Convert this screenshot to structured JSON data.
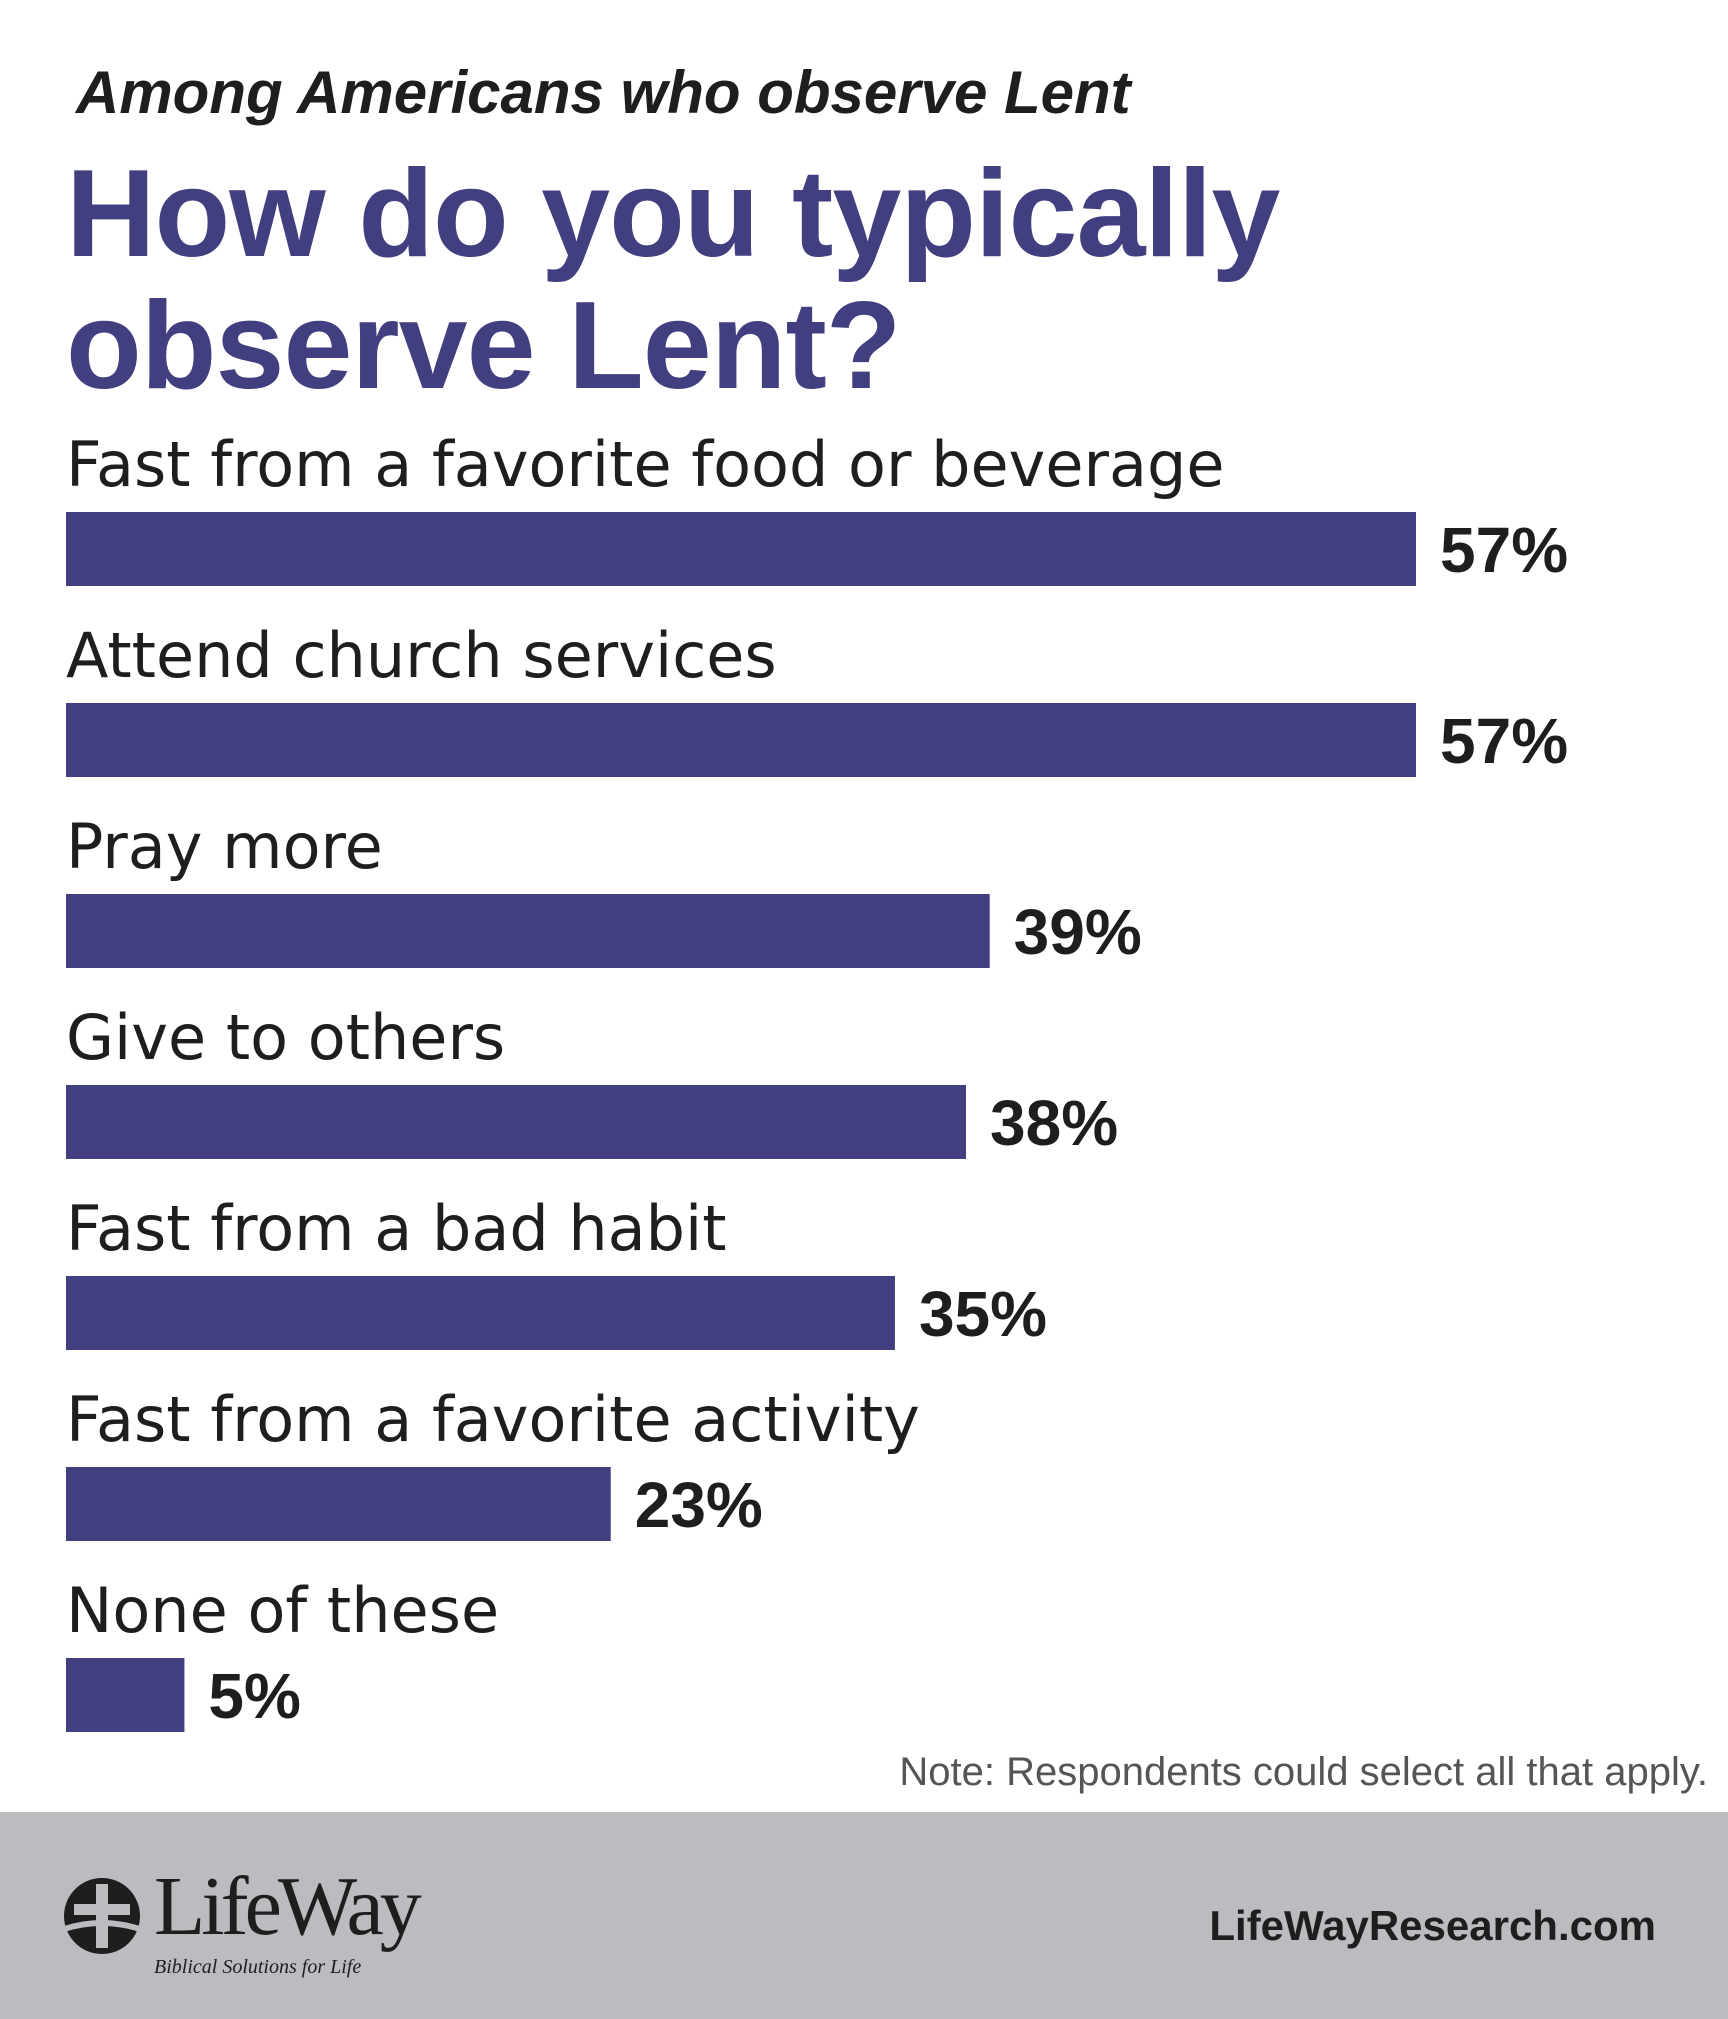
{
  "header": {
    "subtitle": "Among Americans who observe Lent",
    "title": "How do you typically observe Lent?"
  },
  "chart_data": {
    "type": "bar",
    "orientation": "horizontal",
    "categories": [
      "Fast from a favorite food or beverage",
      "Attend church services",
      "Pray more",
      "Give to others",
      "Fast from a bad habit",
      "Fast from a favorite activity",
      "None of these"
    ],
    "values": [
      57,
      57,
      39,
      38,
      35,
      23,
      5
    ],
    "value_labels": [
      "57%",
      "57%",
      "39%",
      "38%",
      "35%",
      "23%",
      "5%"
    ],
    "unit": "%",
    "xlim": [
      0,
      57
    ],
    "grid": false,
    "bar_color": "#413f7f"
  },
  "note": "Note: Respondents could select all that apply.",
  "footer": {
    "brand": "LifeWay",
    "tagline": "Biblical Solutions for Life",
    "website": "LifeWayResearch.com"
  }
}
